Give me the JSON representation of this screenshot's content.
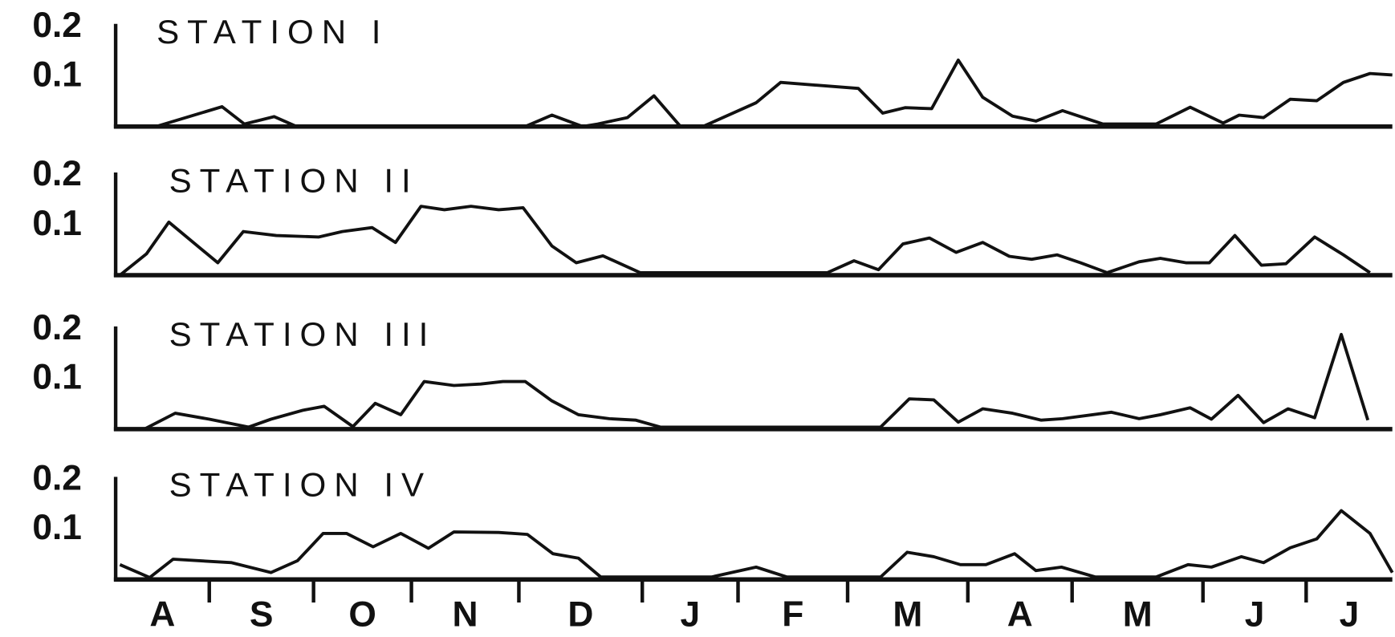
{
  "chart_data": [
    {
      "type": "line",
      "title": "STATION I",
      "color": "#111111",
      "xlim": [
        0,
        12
      ],
      "ylim": [
        0,
        0.2
      ],
      "yticks": [
        0.1,
        0.2
      ],
      "x": [
        0.38,
        1.0,
        1.21,
        1.49,
        1.7,
        3.85,
        4.1,
        4.39,
        4.53,
        4.81,
        5.06,
        5.31,
        5.52,
        6.02,
        6.25,
        6.98,
        7.21,
        7.42,
        7.67,
        7.92,
        8.15,
        8.43,
        8.65,
        8.9,
        9.28,
        9.78,
        10.1,
        10.41,
        10.56,
        10.79,
        11.04,
        11.29,
        11.54,
        11.79,
        12.0
      ],
      "values": [
        0,
        0.04,
        0.005,
        0.02,
        0,
        0,
        0.023,
        0,
        0.005,
        0.018,
        0.062,
        0,
        0,
        0.048,
        0.089,
        0.077,
        0.027,
        0.038,
        0.036,
        0.134,
        0.059,
        0.021,
        0.011,
        0.032,
        0.005,
        0.005,
        0.039,
        0.007,
        0.023,
        0.018,
        0.055,
        0.052,
        0.089,
        0.107,
        0.104
      ]
    },
    {
      "type": "line",
      "title": "STATION II",
      "color": "#111111",
      "xlim": [
        0,
        12
      ],
      "ylim": [
        0,
        0.2
      ],
      "yticks": [
        0.1,
        0.2
      ],
      "x": [
        0.04,
        0.29,
        0.5,
        0.96,
        1.2,
        1.51,
        1.91,
        2.13,
        2.41,
        2.63,
        2.87,
        3.09,
        3.34,
        3.6,
        3.83,
        4.1,
        4.33,
        4.58,
        4.93,
        6.69,
        6.94,
        7.17,
        7.4,
        7.65,
        7.9,
        8.15,
        8.4,
        8.61,
        8.85,
        9.07,
        9.32,
        9.62,
        9.82,
        10.06,
        10.28,
        10.52,
        10.77,
        11.0,
        11.27,
        11.54,
        11.79
      ],
      "values": [
        0,
        0.043,
        0.107,
        0.025,
        0.088,
        0.08,
        0.077,
        0.088,
        0.096,
        0.066,
        0.139,
        0.132,
        0.139,
        0.132,
        0.136,
        0.059,
        0.025,
        0.039,
        0.005,
        0.005,
        0.029,
        0.011,
        0.063,
        0.075,
        0.046,
        0.066,
        0.038,
        0.032,
        0.041,
        0.025,
        0.005,
        0.027,
        0.034,
        0.025,
        0.025,
        0.08,
        0.02,
        0.023,
        0.077,
        0.041,
        0.005
      ]
    },
    {
      "type": "line",
      "title": "STATION III",
      "color": "#111111",
      "xlim": [
        0,
        12
      ],
      "ylim": [
        0,
        0.2
      ],
      "yticks": [
        0.1,
        0.2
      ],
      "x": [
        0.27,
        0.56,
        0.88,
        1.25,
        1.46,
        1.76,
        1.96,
        2.23,
        2.44,
        2.68,
        2.9,
        3.18,
        3.43,
        3.64,
        3.85,
        4.1,
        4.35,
        4.64,
        4.89,
        5.12,
        7.19,
        7.46,
        7.69,
        7.92,
        8.15,
        8.43,
        8.7,
        8.9,
        9.36,
        9.62,
        9.82,
        10.1,
        10.3,
        10.55,
        10.79,
        11.02,
        11.27,
        11.52,
        11.77
      ],
      "values": [
        0,
        0.032,
        0.02,
        0.004,
        0.02,
        0.038,
        0.046,
        0.005,
        0.052,
        0.029,
        0.096,
        0.088,
        0.091,
        0.096,
        0.096,
        0.057,
        0.029,
        0.021,
        0.018,
        0.004,
        0.004,
        0.061,
        0.059,
        0.014,
        0.041,
        0.032,
        0.018,
        0.021,
        0.034,
        0.021,
        0.029,
        0.043,
        0.02,
        0.068,
        0.013,
        0.041,
        0.023,
        0.191,
        0.018
      ]
    },
    {
      "type": "line",
      "title": "STATION IV",
      "color": "#111111",
      "xlim": [
        0,
        12
      ],
      "ylim": [
        0,
        0.2
      ],
      "yticks": [
        0.1,
        0.2
      ],
      "x": [
        0.04,
        0.32,
        0.54,
        1.09,
        1.46,
        1.71,
        1.95,
        2.17,
        2.42,
        2.68,
        2.94,
        3.18,
        3.6,
        3.87,
        4.11,
        4.35,
        4.56,
        5.6,
        6.02,
        6.31,
        7.19,
        7.44,
        7.69,
        7.94,
        8.18,
        8.45,
        8.65,
        8.89,
        9.21,
        9.78,
        10.08,
        10.3,
        10.58,
        10.79,
        11.04,
        11.29,
        11.52,
        11.79,
        12.0
      ],
      "values": [
        0.03,
        0.004,
        0.041,
        0.034,
        0.014,
        0.038,
        0.093,
        0.093,
        0.066,
        0.093,
        0.063,
        0.096,
        0.095,
        0.091,
        0.052,
        0.043,
        0.005,
        0.005,
        0.025,
        0.005,
        0.005,
        0.055,
        0.046,
        0.03,
        0.03,
        0.052,
        0.018,
        0.025,
        0.005,
        0.005,
        0.03,
        0.025,
        0.046,
        0.034,
        0.064,
        0.082,
        0.139,
        0.093,
        0.014
      ],
      "month_labels": [
        "A",
        "S",
        "O",
        "N",
        "D",
        "J",
        "F",
        "M",
        "A",
        "M",
        "J",
        "J"
      ],
      "month_boundaries": [
        0.88,
        1.86,
        2.78,
        3.79,
        4.95,
        5.85,
        6.88,
        8.01,
        8.99,
        10.22,
        11.19
      ]
    }
  ]
}
